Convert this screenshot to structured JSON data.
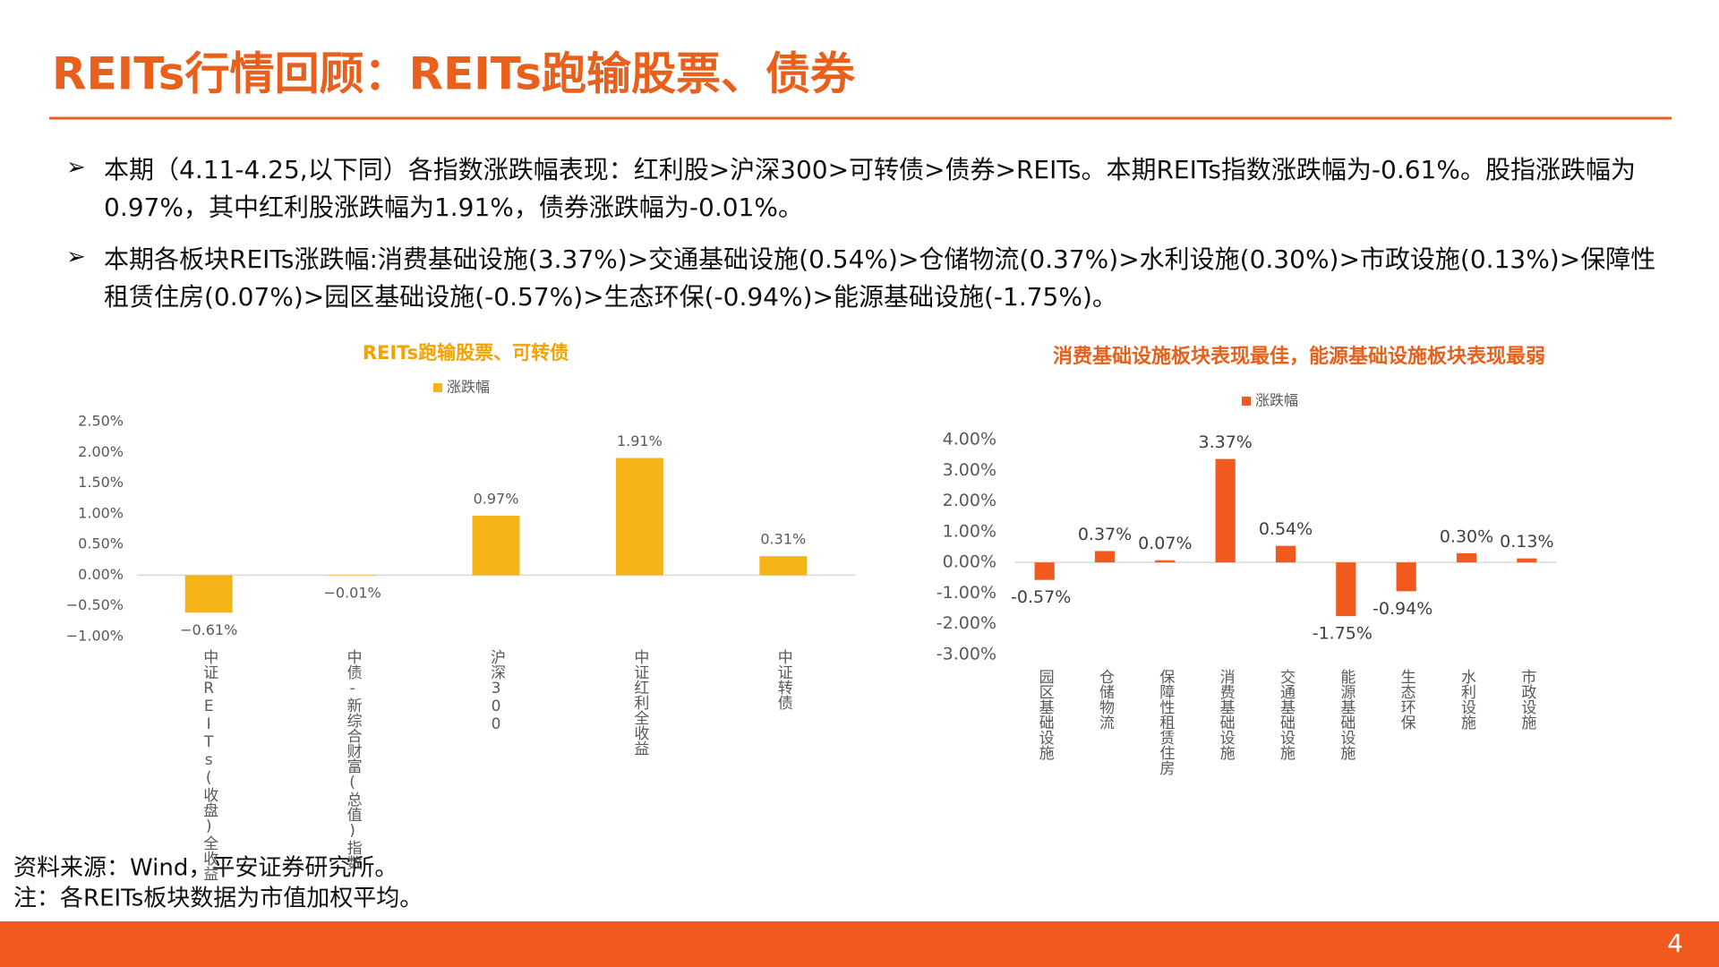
{
  "header": {
    "title": "REITs行情回顾：REITs跑输股票、债券"
  },
  "bullets": [
    "本期（4.11-4.25,以下同）各指数涨跌幅表现：红利股>沪深300>可转债>债券>REITs。本期REITs指数涨跌幅为-0.61%。股指涨跌幅为0.97%，其中红利股涨跌幅为1.91%，债券涨跌幅为-0.01%。",
    "本期各板块REITs涨跌幅:消费基础设施(3.37%)>交通基础设施(0.54%)>仓储物流(0.37%)>水利设施(0.30%)>市政设施(0.13%)>保障性租赁住房(0.07%)>园区基础设施(-0.57%)>生态环保(-0.94%)>能源基础设施(-1.75%)。"
  ],
  "chart_data": [
    {
      "type": "bar",
      "title": "REITs跑输股票、可转债",
      "categories": [
        "中证REITs(收盘)全收益",
        "中债-新综合财富(总值)指数",
        "沪深300",
        "中证红利全收益",
        "中证转债"
      ],
      "series": [
        {
          "name": "涨跌幅",
          "color": "#f5b417",
          "values": [
            -0.61,
            -0.01,
            0.97,
            1.91,
            0.31
          ],
          "value_labels": [
            "−0.61%",
            "−0.01%",
            "0.97%",
            "1.91%",
            "0.31%"
          ]
        }
      ],
      "ylim": [
        -1,
        2.5
      ],
      "yticks": [
        {
          "value": -1,
          "label": "−1.00%"
        },
        {
          "value": -0.5,
          "label": "−0.50%"
        },
        {
          "value": 0,
          "label": "0.00%"
        },
        {
          "value": 0.5,
          "label": "0.50%"
        },
        {
          "value": 1,
          "label": "1.00%"
        },
        {
          "value": 1.5,
          "label": "1.50%"
        },
        {
          "value": 2,
          "label": "2.00%"
        },
        {
          "value": 2.5,
          "label": "2.50%"
        }
      ],
      "grid": false,
      "legend": "top"
    },
    {
      "type": "bar",
      "title": "消费基础设施板块表现最佳，能源基础设施板块表现最弱",
      "categories": [
        "园区基础设施",
        "仓储物流",
        "保障性租赁住房",
        "消费基础设施",
        "交通基础设施",
        "能源基础设施",
        "生态环保",
        "水利设施",
        "市政设施"
      ],
      "series": [
        {
          "name": "涨跌幅",
          "color": "#f05a1e",
          "values": [
            -0.57,
            0.37,
            0.07,
            3.37,
            0.54,
            -1.75,
            -0.94,
            0.3,
            0.13
          ],
          "value_labels": [
            "-0.57%",
            "0.37%",
            "0.07%",
            "3.37%",
            "0.54%",
            "-1.75%",
            "-0.94%",
            "0.30%",
            "0.13%"
          ]
        }
      ],
      "ylim": [
        -3,
        4
      ],
      "yticks": [
        {
          "value": -3,
          "label": "-3.00%"
        },
        {
          "value": -2,
          "label": "-2.00%"
        },
        {
          "value": -1,
          "label": "-1.00%"
        },
        {
          "value": 0,
          "label": "0.00%"
        },
        {
          "value": 1,
          "label": "1.00%"
        },
        {
          "value": 2,
          "label": "2.00%"
        },
        {
          "value": 3,
          "label": "3.00%"
        },
        {
          "value": 4,
          "label": "4.00%"
        }
      ],
      "grid": false,
      "legend": "top"
    }
  ],
  "footer": {
    "source": "资料来源：Wind，平安证券研究所。",
    "note": "注：各REITs板块数据为市值加权平均。",
    "page": "4"
  }
}
